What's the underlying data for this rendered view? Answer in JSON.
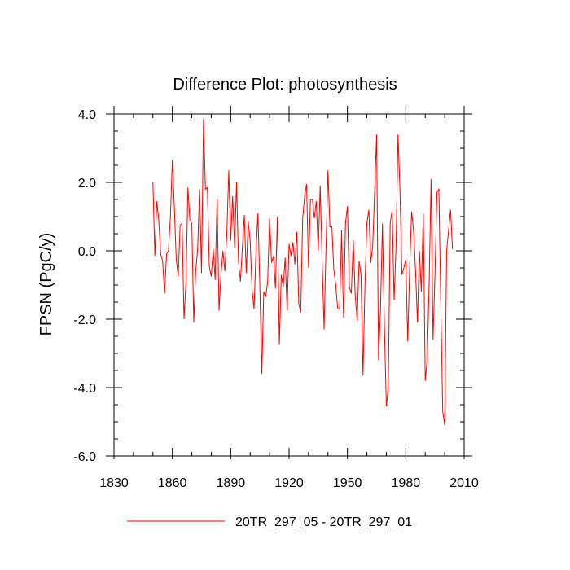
{
  "chart_data": {
    "type": "line",
    "title": "Difference Plot: photosynthesis",
    "xlabel": "",
    "ylabel": "FPSN  (PgC/y)",
    "xlim": [
      1830,
      2010
    ],
    "ylim": [
      -6.0,
      4.0
    ],
    "x_major_ticks": [
      1830,
      1860,
      1890,
      1920,
      1950,
      1980,
      2010
    ],
    "x_tick_labels": [
      "1830",
      "1860",
      "1890",
      "1920",
      "1950",
      "1980",
      "2010"
    ],
    "y_major_ticks": [
      4.0,
      2.0,
      0.0,
      -2.0,
      -4.0,
      -6.0
    ],
    "y_tick_labels": [
      "4.0",
      "2.0",
      "0.0",
      "-2.0",
      "-4.0",
      "-6.0"
    ],
    "grid": false,
    "legend_position": "bottom-center",
    "series": [
      {
        "name": "20TR_297_05 - 20TR_297_01",
        "color": "#ff0000",
        "x_start": 1850,
        "x_step": 1,
        "values": [
          2.0,
          -0.15,
          1.45,
          0.9,
          -0.1,
          -0.3,
          -1.25,
          -0.1,
          0.0,
          1.0,
          2.65,
          1.3,
          -0.25,
          -0.75,
          0.75,
          0.8,
          -2.0,
          -0.9,
          1.85,
          0.9,
          0.8,
          -2.1,
          -0.6,
          0.05,
          1.8,
          -0.65,
          3.85,
          1.8,
          1.85,
          -0.45,
          -0.75,
          0.05,
          -0.85,
          1.5,
          -1.75,
          -0.7,
          0.0,
          -0.6,
          0.5,
          2.35,
          0.3,
          1.6,
          0.1,
          2.0,
          -0.3,
          -0.9,
          0.1,
          1.05,
          -0.65,
          0.85,
          0.3,
          -1.15,
          -1.7,
          0.0,
          1.1,
          -1.1,
          -3.6,
          -1.2,
          -1.35,
          -0.9,
          0.95,
          -0.35,
          -0.15,
          -1.1,
          1.0,
          -2.75,
          -0.7,
          -1.05,
          -0.2,
          -1.75,
          0.2,
          -0.15,
          0.25,
          -0.4,
          0.55,
          -1.55,
          -1.8,
          0.95,
          1.6,
          1.95,
          -0.5,
          1.5,
          1.5,
          0.95,
          1.45,
          0.0,
          1.9,
          -0.3,
          -2.3,
          0.1,
          2.35,
          0.7,
          0.7,
          -0.55,
          -1.0,
          -1.7,
          -1.7,
          0.6,
          -1.95,
          0.8,
          1.3,
          -1.05,
          -1.25,
          0.3,
          -1.3,
          -2.05,
          -0.3,
          -0.7,
          -3.65,
          -1.05,
          0.8,
          1.2,
          -0.35,
          0.15,
          1.75,
          3.4,
          -3.2,
          -1.7,
          0.8,
          -2.2,
          -4.55,
          -4.0,
          0.8,
          1.2,
          -1.45,
          0.15,
          3.4,
          1.8,
          -0.7,
          -0.5,
          -0.25,
          -2.65,
          -0.5,
          1.15,
          0.6,
          -0.55,
          -2.1,
          0.0,
          -1.2,
          1.1,
          -3.8,
          -3.2,
          -1.0,
          2.1,
          -2.6,
          -0.7,
          1.7,
          1.8,
          -1.55,
          -4.7,
          -5.1,
          0.0,
          0.6,
          1.2,
          0.05
        ]
      }
    ]
  }
}
